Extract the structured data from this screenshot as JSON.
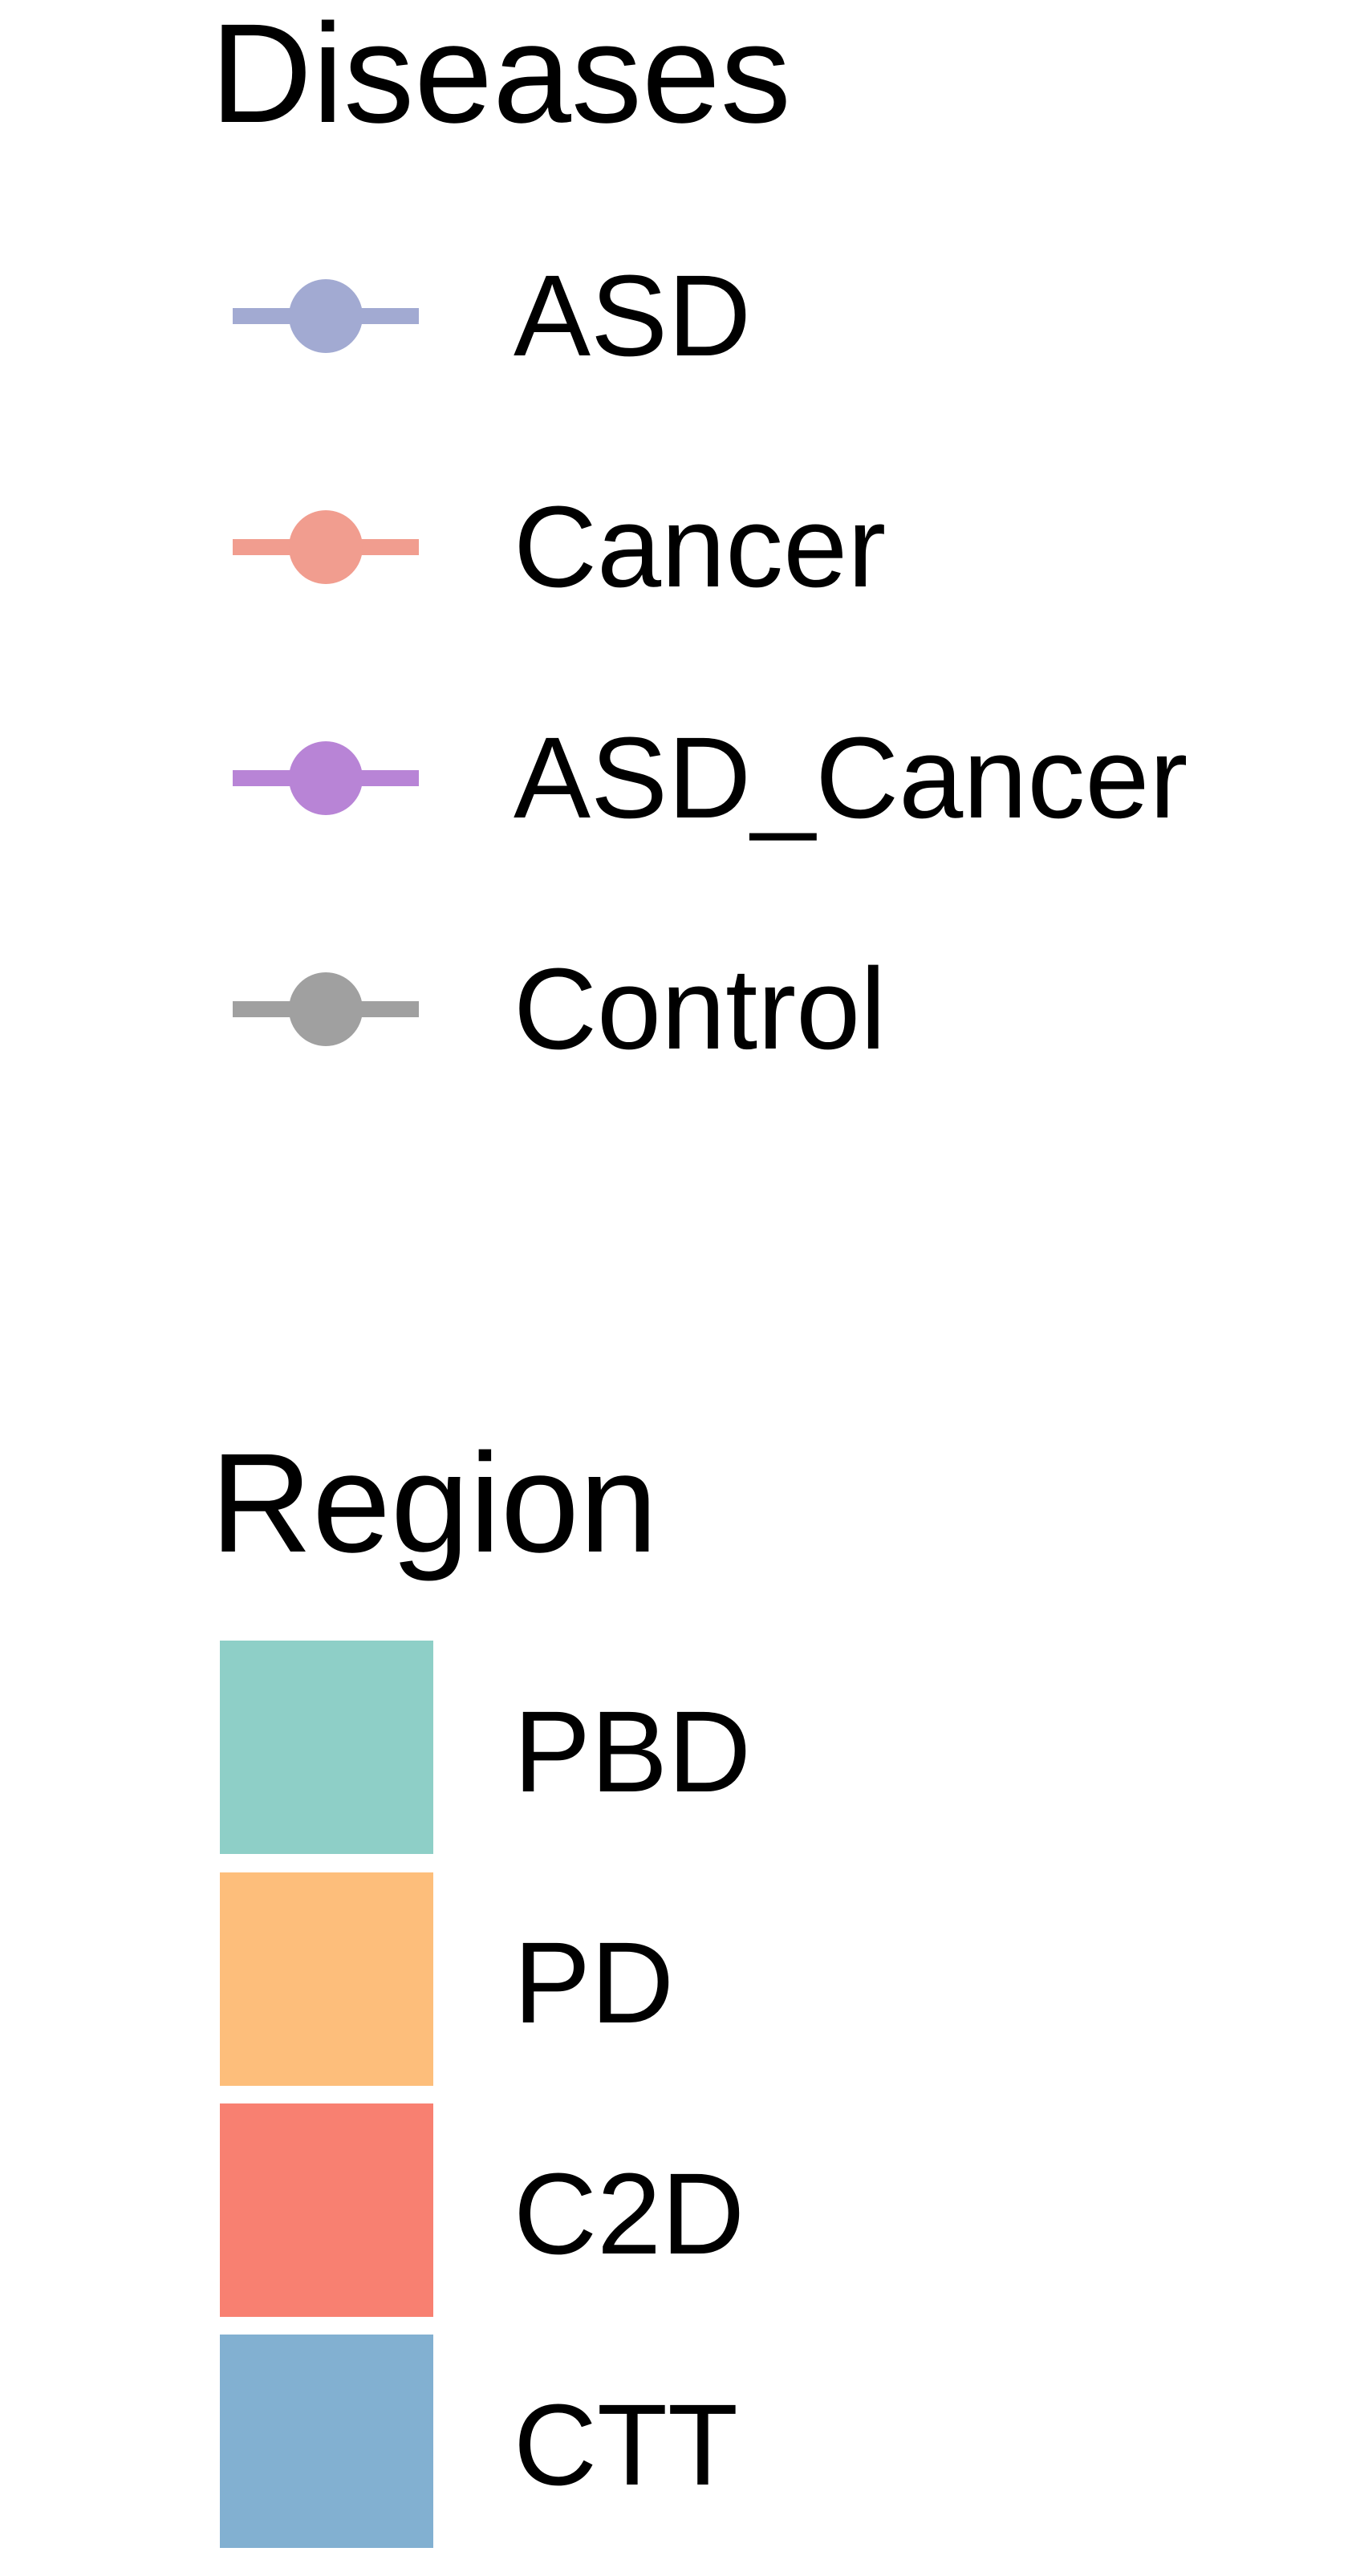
{
  "chart_data": {
    "type": "legend",
    "legends": [
      {
        "title": "Diseases",
        "key_type": "line-point",
        "entries": [
          {
            "label": "ASD",
            "color": "#a2aad2"
          },
          {
            "label": "Cancer",
            "color": "#f19d8f"
          },
          {
            "label": "ASD_Cancer",
            "color": "#b884d6"
          },
          {
            "label": "Control",
            "color": "#a0a0a0"
          }
        ]
      },
      {
        "title": "Region",
        "key_type": "fill",
        "entries": [
          {
            "label": "PBD",
            "color": "#8ecfc7"
          },
          {
            "label": "PD",
            "color": "#fdbe7b"
          },
          {
            "label": "C2D",
            "color": "#f88071"
          },
          {
            "label": "CTT",
            "color": "#82b0d1"
          }
        ]
      }
    ]
  }
}
